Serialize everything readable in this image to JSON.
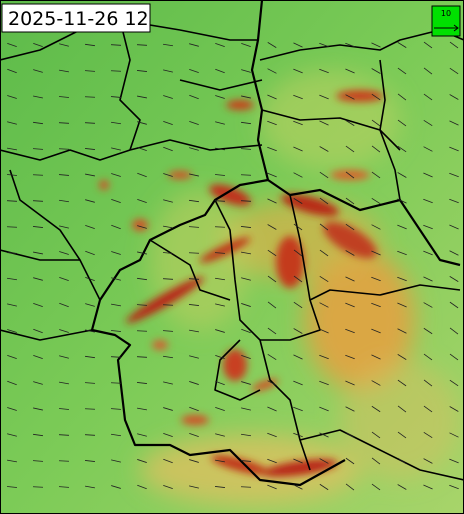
{
  "timestamp": "2025-11-26 12",
  "wind_legend": {
    "label": "10"
  }
}
